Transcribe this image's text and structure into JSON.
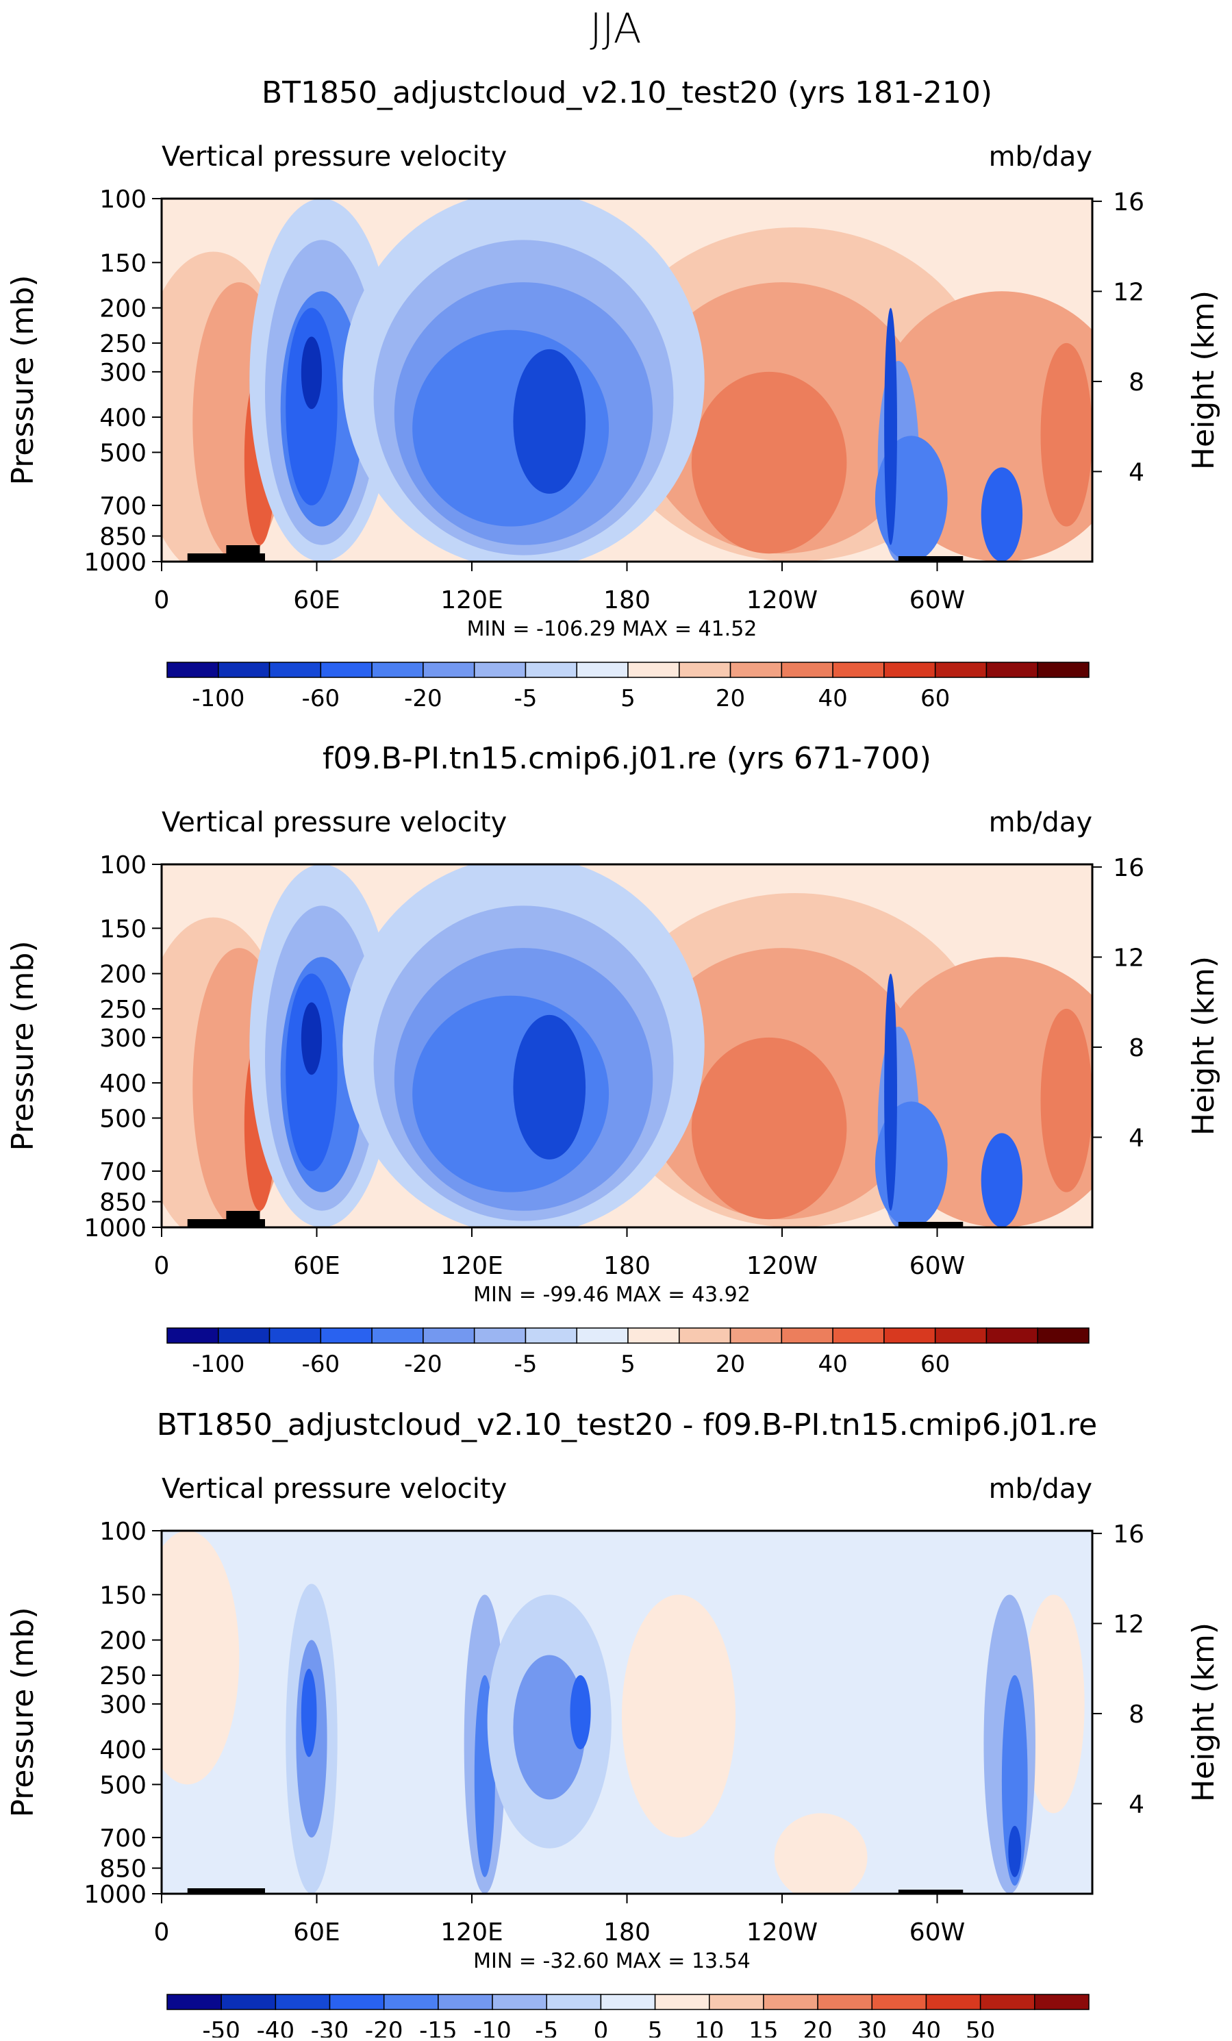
{
  "page_title": "JJA",
  "chart_data": [
    {
      "type": "heatmap",
      "title": "BT1850_adjustcloud_v2.10_test20 (yrs 181-210)",
      "left_label": "Vertical pressure velocity",
      "right_label": "mb/day",
      "ylabel": "Pressure (mb)",
      "y2label": "Height (km)",
      "x_ticks": [
        "0",
        "60E",
        "120E",
        "180",
        "120W",
        "60W"
      ],
      "x_tick_lon": [
        0,
        60,
        120,
        180,
        240,
        300
      ],
      "y_ticks": [
        100,
        150,
        200,
        250,
        300,
        400,
        500,
        700,
        850,
        1000
      ],
      "y2_ticks": [
        4,
        8,
        12,
        16
      ],
      "stats": "MIN = -106.29   MAX =   41.52",
      "min": -106.29,
      "max": 41.52,
      "colorbar_labels": [
        "-100",
        "-60",
        "-20",
        "-5",
        "5",
        "20",
        "40",
        "60"
      ],
      "colorbar_colors": [
        "#08088e",
        "#0a2fb8",
        "#1548d6",
        "#2962f0",
        "#4b7ff2",
        "#7398f0",
        "#9bb5f2",
        "#c2d6f8",
        "#e2ecfb",
        "#fde9dc",
        "#f8c9b0",
        "#f2a283",
        "#ec7e5c",
        "#e85d3b",
        "#d8391f",
        "#b72012",
        "#8c0a0a",
        "#5c0000"
      ],
      "features": {
        "mode": "base",
        "lon_extent": 360,
        "pmin": 100,
        "pmax": 1000
      }
    },
    {
      "type": "heatmap",
      "title": "f09.B-PI.tn15.cmip6.j01.re (yrs 671-700)",
      "left_label": "Vertical pressure velocity",
      "right_label": "mb/day",
      "ylabel": "Pressure (mb)",
      "y2label": "Height (km)",
      "x_ticks": [
        "0",
        "60E",
        "120E",
        "180",
        "120W",
        "60W"
      ],
      "x_tick_lon": [
        0,
        60,
        120,
        180,
        240,
        300
      ],
      "y_ticks": [
        100,
        150,
        200,
        250,
        300,
        400,
        500,
        700,
        850,
        1000
      ],
      "y2_ticks": [
        4,
        8,
        12,
        16
      ],
      "stats": "MIN =  -99.46   MAX =   43.92",
      "min": -99.46,
      "max": 43.92,
      "colorbar_labels": [
        "-100",
        "-60",
        "-20",
        "-5",
        "5",
        "20",
        "40",
        "60"
      ],
      "colorbar_colors": [
        "#08088e",
        "#0a2fb8",
        "#1548d6",
        "#2962f0",
        "#4b7ff2",
        "#7398f0",
        "#9bb5f2",
        "#c2d6f8",
        "#e2ecfb",
        "#fde9dc",
        "#f8c9b0",
        "#f2a283",
        "#ec7e5c",
        "#e85d3b",
        "#d8391f",
        "#b72012",
        "#8c0a0a",
        "#5c0000"
      ],
      "features": {
        "mode": "base",
        "lon_extent": 360,
        "pmin": 100,
        "pmax": 1000
      }
    },
    {
      "type": "heatmap",
      "title": "BT1850_adjustcloud_v2.10_test20 - f09.B-PI.tn15.cmip6.j01.re",
      "left_label": "Vertical pressure velocity",
      "right_label": "mb/day",
      "ylabel": "Pressure (mb)",
      "y2label": "Height (km)",
      "x_ticks": [
        "0",
        "60E",
        "120E",
        "180",
        "120W",
        "60W"
      ],
      "x_tick_lon": [
        0,
        60,
        120,
        180,
        240,
        300
      ],
      "y_ticks": [
        100,
        150,
        200,
        250,
        300,
        400,
        500,
        700,
        850,
        1000
      ],
      "y2_ticks": [
        4,
        8,
        12,
        16
      ],
      "stats": "MIN =  -32.60   MAX =   13.54",
      "min": -32.6,
      "max": 13.54,
      "colorbar_labels": [
        "-50",
        "-40",
        "-30",
        "-20",
        "-15",
        "-10",
        "-5",
        "0",
        "5",
        "10",
        "15",
        "20",
        "30",
        "40",
        "50"
      ],
      "colorbar_colors": [
        "#08088e",
        "#0a2fb8",
        "#1548d6",
        "#2962f0",
        "#4b7ff2",
        "#7398f0",
        "#9bb5f2",
        "#c2d6f8",
        "#e2ecfb",
        "#fde9dc",
        "#f8c9b0",
        "#f2a283",
        "#ec7e5c",
        "#e85d3b",
        "#d8391f",
        "#b72012",
        "#8c0a0a"
      ],
      "features": {
        "mode": "diff",
        "lon_extent": 360,
        "pmin": 100,
        "pmax": 1000
      }
    }
  ]
}
